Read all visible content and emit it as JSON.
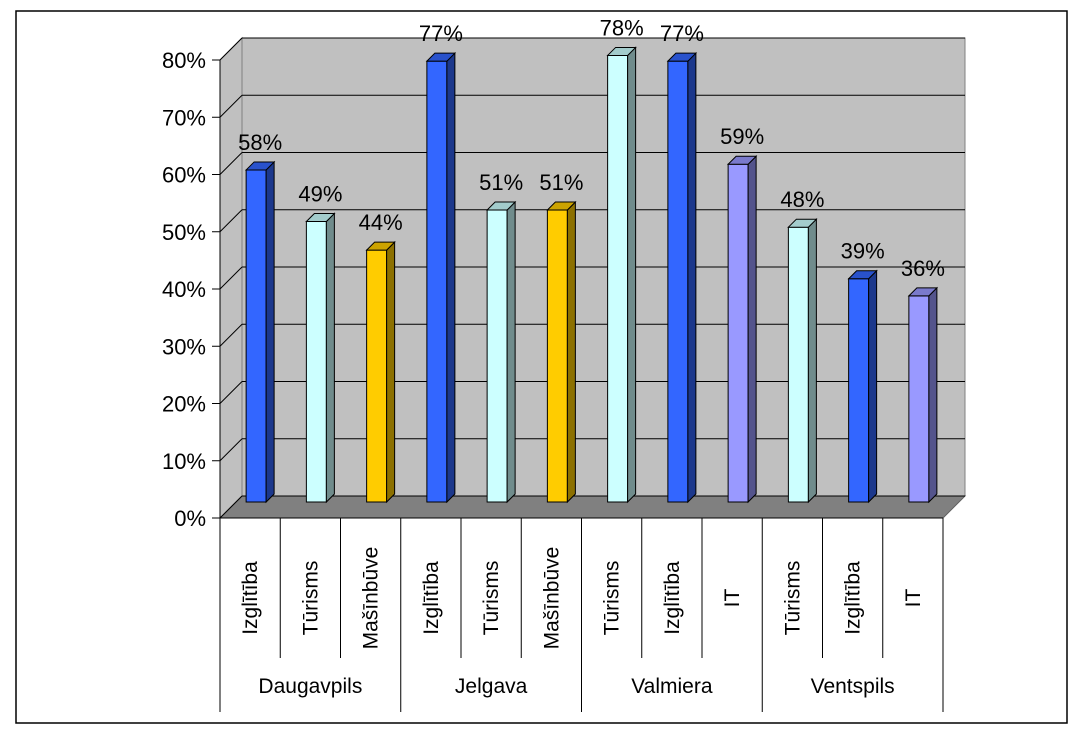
{
  "chart_data": {
    "type": "bar",
    "style": "3d-clustered-column",
    "yaxis": {
      "min": 0,
      "max": 80,
      "step": 10,
      "tick_labels": [
        "0%",
        "10%",
        "20%",
        "30%",
        "40%",
        "50%",
        "60%",
        "70%",
        "80%"
      ]
    },
    "grid": true,
    "plot_background": "#c0c0c0",
    "legend": "none",
    "groups": [
      {
        "name": "Daugavpils",
        "bars": [
          {
            "category": "Izglītība",
            "value": 58,
            "label": "58%",
            "color": "#3366ff"
          },
          {
            "category": "Tūrisms",
            "value": 49,
            "label": "49%",
            "color": "#ccffff"
          },
          {
            "category": "Mašīnbūve",
            "value": 44,
            "label": "44%",
            "color": "#ffcc00"
          }
        ]
      },
      {
        "name": "Jelgava",
        "bars": [
          {
            "category": "Izglītība",
            "value": 77,
            "label": "77%",
            "color": "#3366ff"
          },
          {
            "category": "Tūrisms",
            "value": 51,
            "label": "51%",
            "color": "#ccffff"
          },
          {
            "category": "Mašīnbūve",
            "value": 51,
            "label": "51%",
            "color": "#ffcc00"
          }
        ]
      },
      {
        "name": "Valmiera",
        "bars": [
          {
            "category": "Tūrisms",
            "value": 78,
            "label": "78%",
            "color": "#ccffff"
          },
          {
            "category": "Izglītība",
            "value": 77,
            "label": "77%",
            "color": "#3366ff"
          },
          {
            "category": "IT",
            "value": 59,
            "label": "59%",
            "color": "#9999ff"
          }
        ]
      },
      {
        "name": "Ventspils",
        "bars": [
          {
            "category": "Tūrisms",
            "value": 48,
            "label": "48%",
            "color": "#ccffff"
          },
          {
            "category": "Izglītība",
            "value": 39,
            "label": "39%",
            "color": "#3366ff"
          },
          {
            "category": "IT",
            "value": 36,
            "label": "36%",
            "color": "#9999ff"
          }
        ]
      }
    ]
  }
}
